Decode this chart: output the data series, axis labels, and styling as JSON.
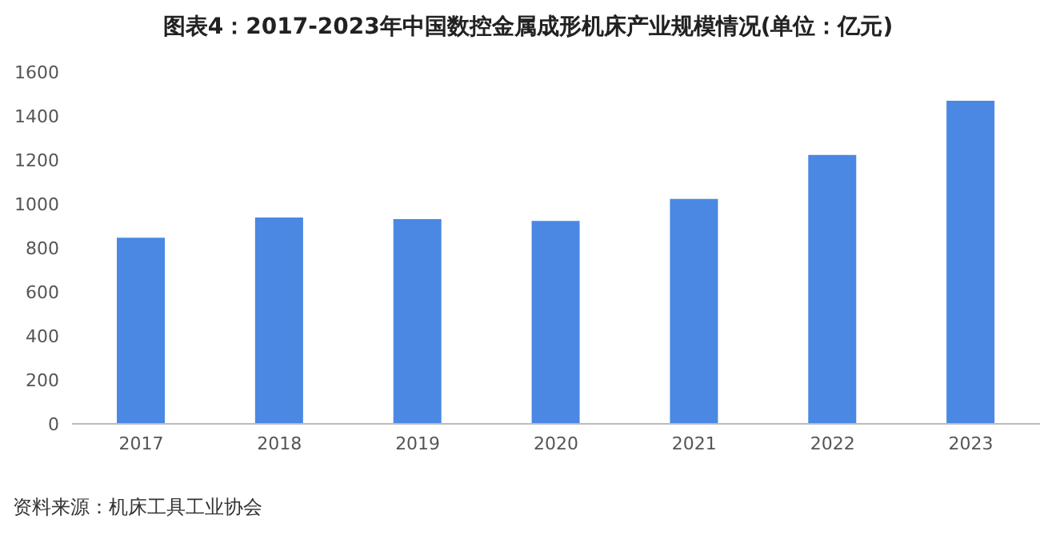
{
  "chart_data": {
    "type": "bar",
    "title": "图表4：2017-2023年中国数控金属成形机床产业规模情况(单位：亿元)",
    "categories": [
      "2017",
      "2018",
      "2019",
      "2020",
      "2021",
      "2022",
      "2023"
    ],
    "values": [
      846,
      938,
      931,
      923,
      1023,
      1223,
      1469
    ],
    "color": "#4a88e3",
    "ylim": [
      0,
      1600
    ],
    "yticks": [
      0,
      200,
      400,
      600,
      800,
      1000,
      1200,
      1400,
      1600
    ],
    "grid": false,
    "annotations": [
      "资料来源：机床工具工业协会"
    ]
  }
}
